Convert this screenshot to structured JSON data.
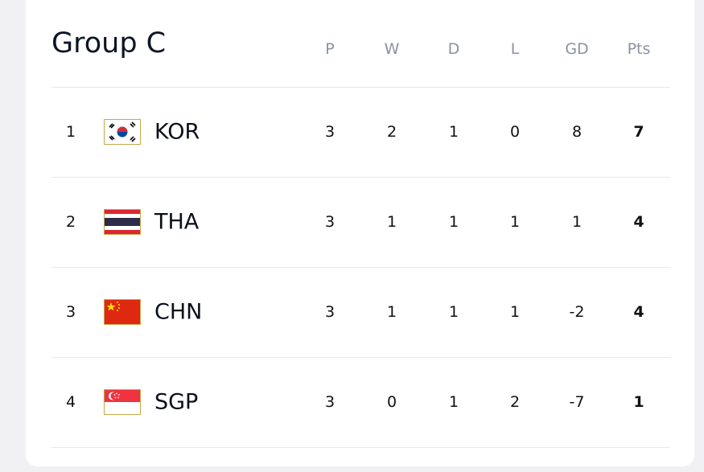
{
  "title": "Group C",
  "columns": [
    "P",
    "W",
    "D",
    "L",
    "GD",
    "Pts"
  ],
  "rows": [
    {
      "rank": 1,
      "team": "KOR",
      "stats": [
        3,
        2,
        1,
        0,
        8,
        7
      ]
    },
    {
      "rank": 2,
      "team": "THA",
      "stats": [
        3,
        1,
        1,
        1,
        1,
        4
      ]
    },
    {
      "rank": 3,
      "team": "CHN",
      "stats": [
        3,
        1,
        1,
        1,
        -2,
        4
      ]
    },
    {
      "rank": 4,
      "team": "SGP",
      "stats": [
        3,
        0,
        1,
        2,
        -7,
        1
      ]
    }
  ]
}
